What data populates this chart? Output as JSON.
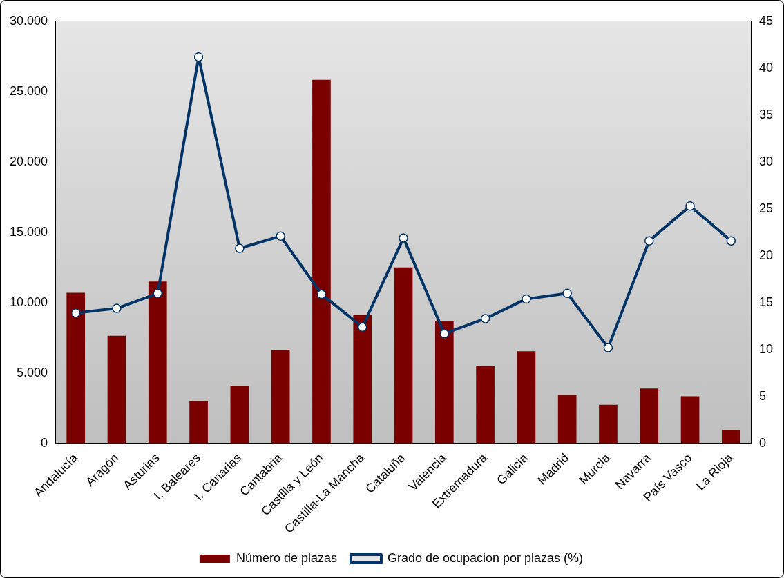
{
  "chart_data": {
    "type": "bar",
    "categories": [
      "Andalucía",
      "Aragón",
      "Asturias",
      "I. Baleares",
      "I. Canarias",
      "Cantabria",
      "Castilla y León",
      "Castilla-La Mancha",
      "Cataluña",
      "Valencia",
      "Extremadura",
      "Galicia",
      "Madrid",
      "Murcia",
      "Navarra",
      "País Vasco",
      "La Rioja"
    ],
    "series": [
      {
        "name": "Número de plazas",
        "color": "#7a0000",
        "values": [
          10700,
          7650,
          11500,
          3000,
          4100,
          6650,
          25850,
          9150,
          12500,
          8700,
          5500,
          6550,
          3450,
          2750,
          3900,
          3350,
          950
        ]
      },
      {
        "name": "Grado de ocupacion por plazas (%)",
        "type": "line",
        "axis": "y2",
        "color": "#003366",
        "values": [
          13.9,
          14.4,
          16.0,
          41.2,
          20.8,
          22.1,
          15.9,
          12.4,
          21.9,
          11.7,
          13.3,
          15.4,
          16.0,
          10.2,
          21.6,
          25.3,
          21.6
        ]
      }
    ],
    "ylim": [
      0,
      30000
    ],
    "yticks": [
      {
        "value": 0,
        "label": "0"
      },
      {
        "value": 5000,
        "label": "5.000"
      },
      {
        "value": 10000,
        "label": "10.000"
      },
      {
        "value": 15000,
        "label": "15.000"
      },
      {
        "value": 20000,
        "label": "20.000"
      },
      {
        "value": 25000,
        "label": "25.000"
      },
      {
        "value": 30000,
        "label": "30.000"
      }
    ],
    "y2lim": [
      0,
      45
    ],
    "y2ticks": [
      0,
      5,
      10,
      15,
      20,
      25,
      30,
      35,
      40,
      45
    ],
    "grid": false,
    "legend": "bottom",
    "marker": "circle",
    "line_style": "solid"
  }
}
